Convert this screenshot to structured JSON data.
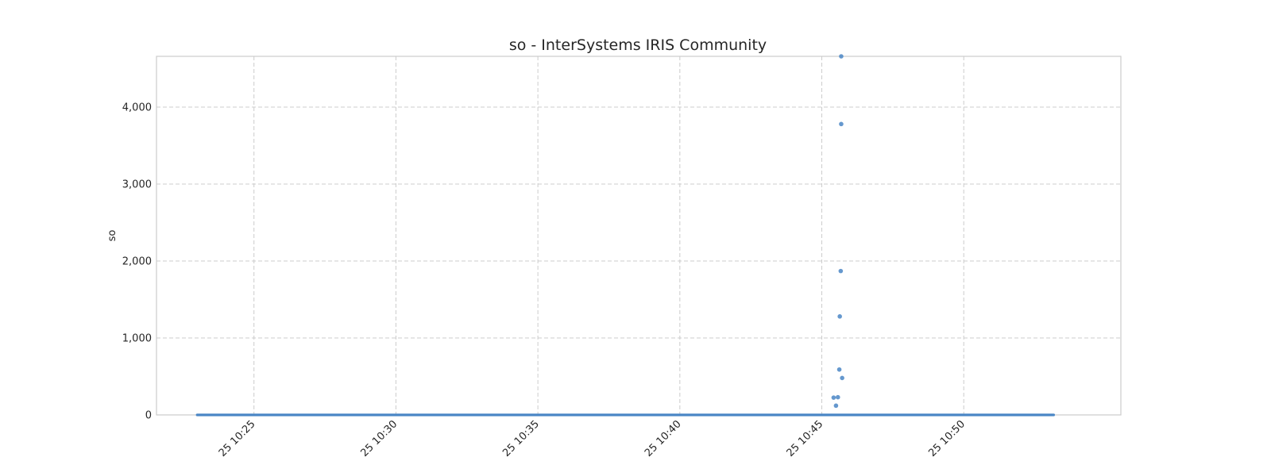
{
  "chart_data": {
    "type": "scatter",
    "title": "so - InterSystems IRIS Community",
    "xlabel": "",
    "ylabel": "so",
    "x_type": "time",
    "xlim": [
      "10:21:34",
      "10:55:32"
    ],
    "ylim": [
      0,
      4660
    ],
    "yticks": [
      0,
      1000,
      2000,
      3000,
      4000
    ],
    "ytick_labels": [
      "0",
      "1,000",
      "2,000",
      "3,000",
      "4,000"
    ],
    "xticks": [
      "10:25",
      "10:30",
      "10:35",
      "10:40",
      "10:45",
      "10:50"
    ],
    "xtick_labels": [
      "25 10:25",
      "25 10:30",
      "25 10:35",
      "25 10:40",
      "25 10:45",
      "25 10:50"
    ],
    "grid": true,
    "color": "#4a86c5",
    "baseline": {
      "x_start": "10:23:00",
      "x_end": "10:53:10",
      "value": 0
    },
    "points": [
      {
        "x": "10:45:25",
        "y": 225
      },
      {
        "x": "10:45:30",
        "y": 120
      },
      {
        "x": "10:45:34",
        "y": 230
      },
      {
        "x": "10:45:37",
        "y": 590
      },
      {
        "x": "10:45:38",
        "y": 1280
      },
      {
        "x": "10:45:40",
        "y": 1870
      },
      {
        "x": "10:45:41",
        "y": 3780
      },
      {
        "x": "10:45:41",
        "y": 4660
      },
      {
        "x": "10:45:43",
        "y": 480
      }
    ]
  }
}
